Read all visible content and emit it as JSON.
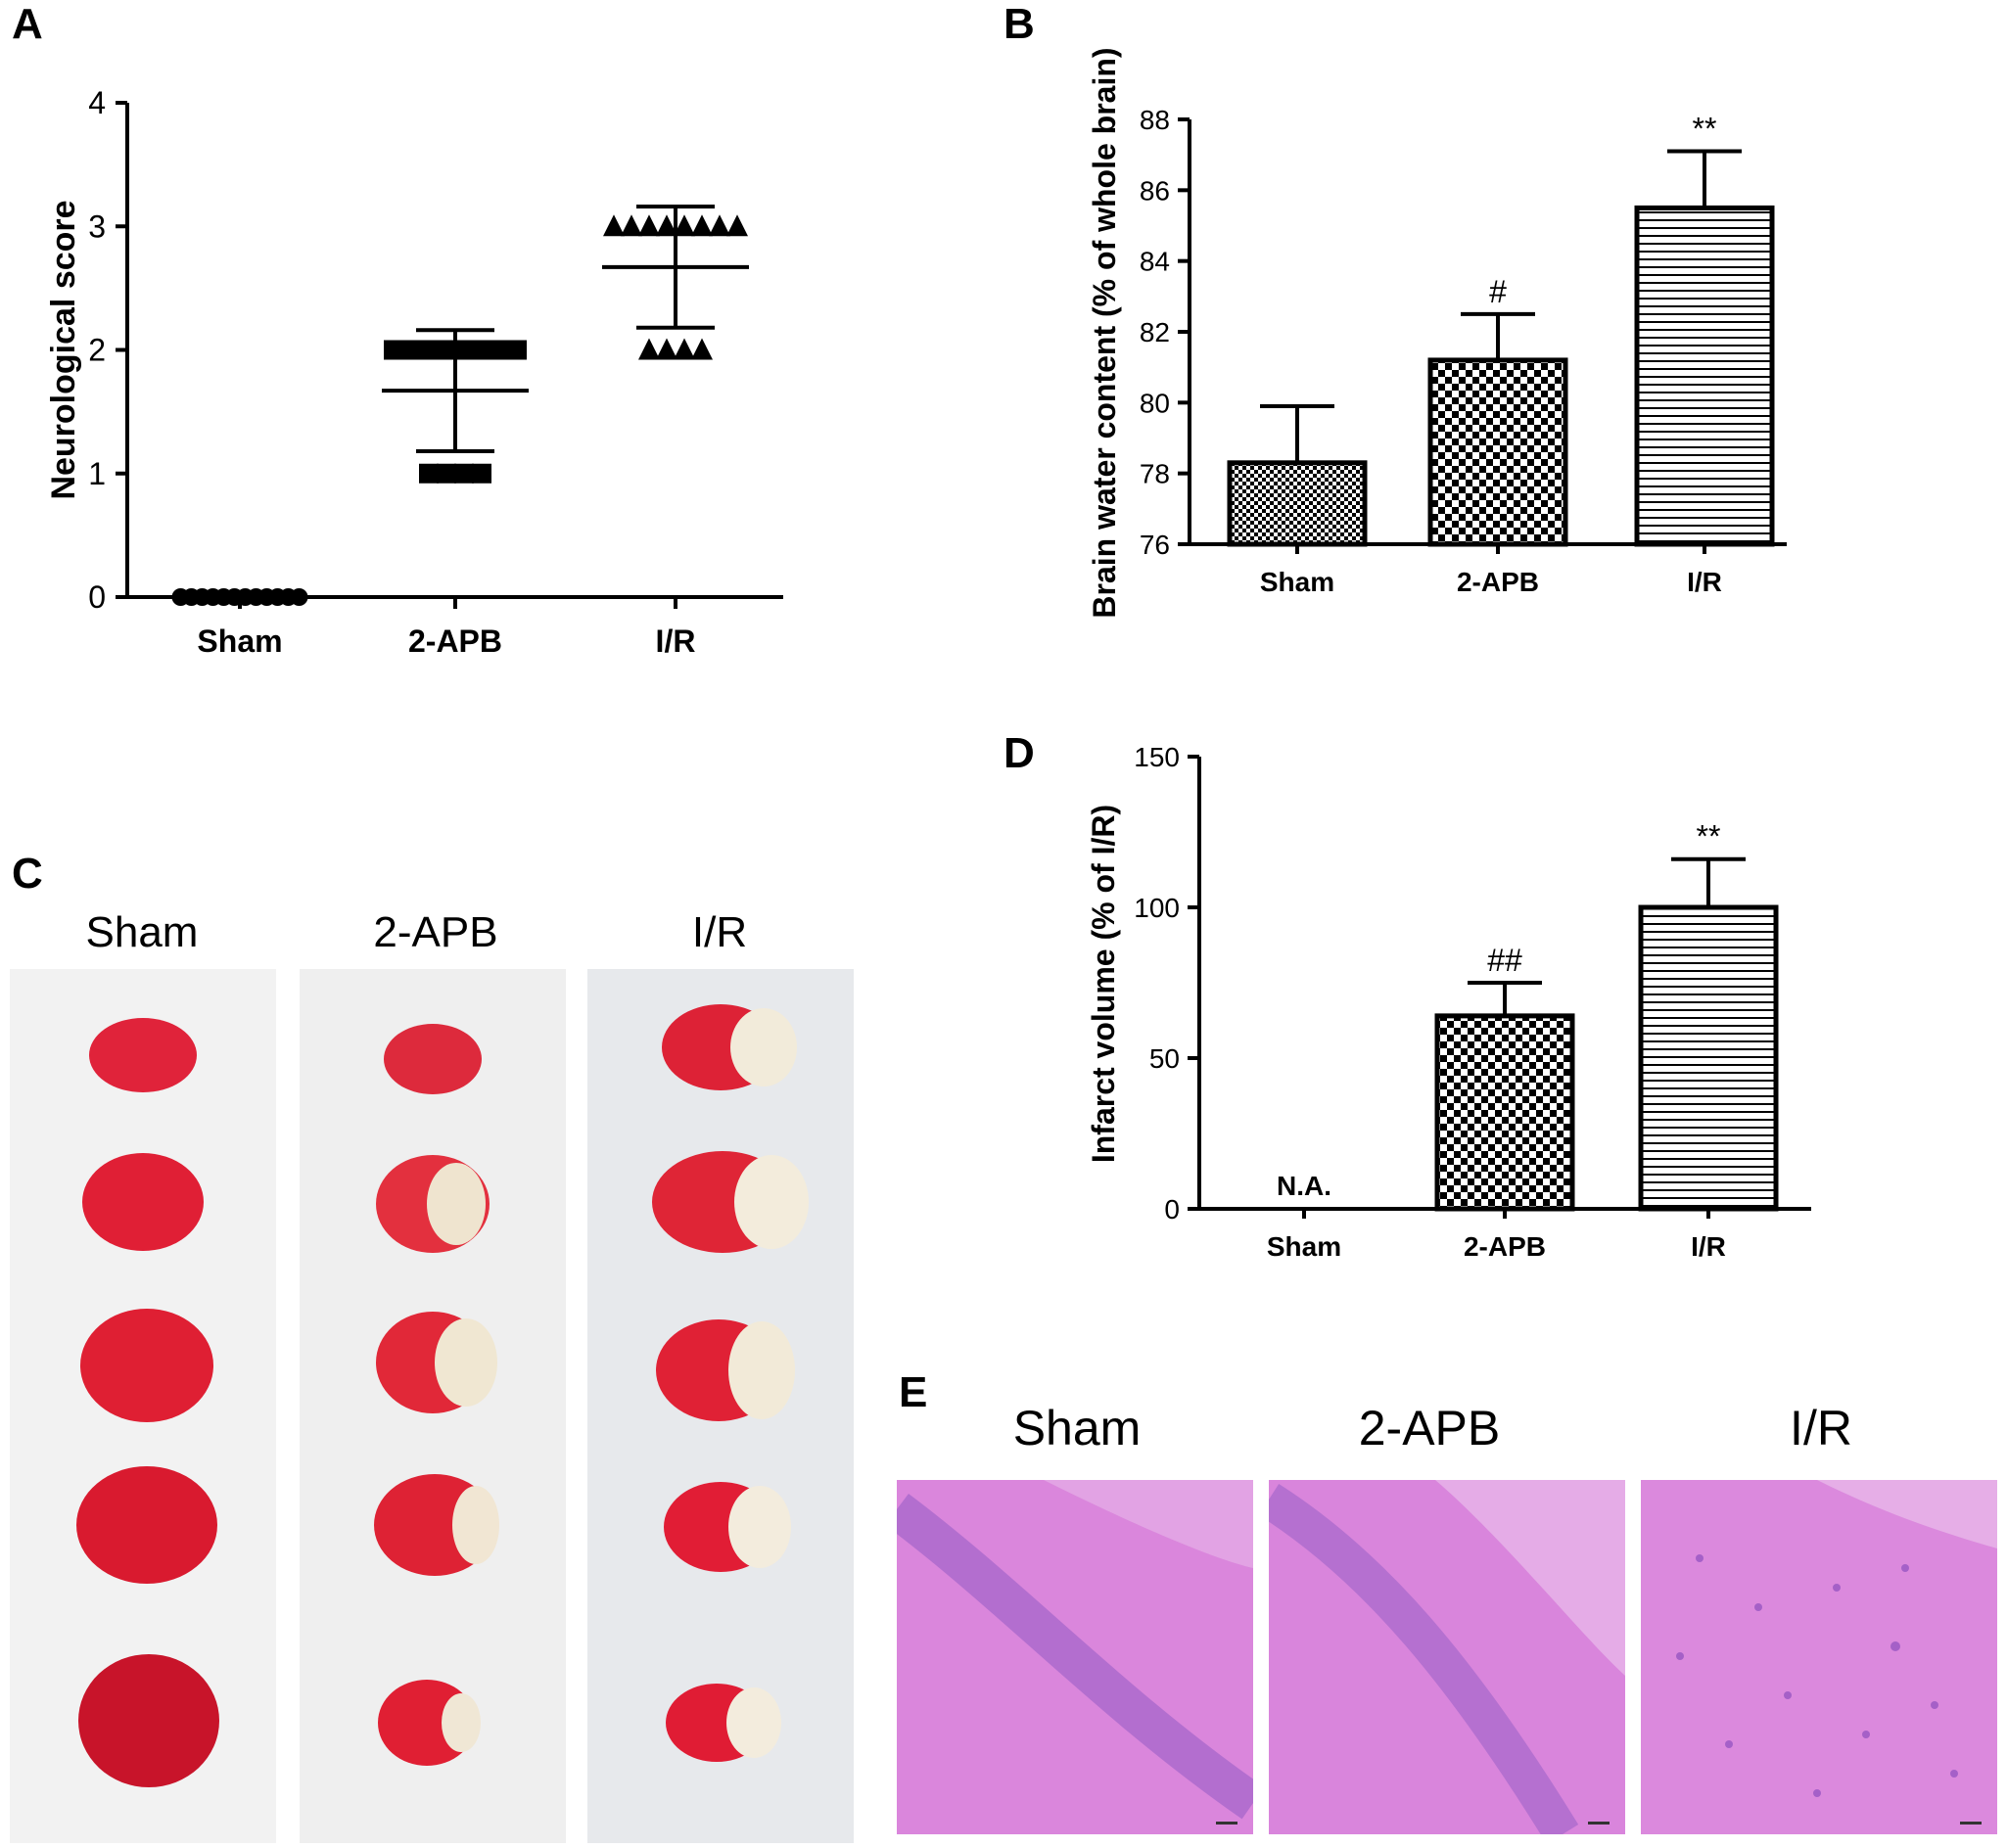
{
  "panels": {
    "A": {
      "letter": "A"
    },
    "B": {
      "letter": "B"
    },
    "C": {
      "letter": "C"
    },
    "D": {
      "letter": "D"
    },
    "E": {
      "letter": "E"
    }
  },
  "photo_groups": [
    "Sham",
    "2-APB",
    "I/R"
  ],
  "he_groups": [
    "Sham",
    "2-APB",
    "I/R"
  ],
  "chart_data": [
    {
      "id": "A",
      "type": "scatter",
      "ylabel": "Neurological score",
      "xlabel": "",
      "categories": [
        "Sham",
        "2-APB",
        "I/R"
      ],
      "ylim": [
        0,
        4
      ],
      "yticks": [
        0,
        1,
        2,
        3,
        4
      ],
      "series": [
        {
          "category": "Sham",
          "marker": "circle",
          "points": [
            0,
            0,
            0,
            0,
            0,
            0,
            0,
            0,
            0,
            0,
            0,
            0
          ],
          "mean": 0,
          "sd": 0
        },
        {
          "category": "2-APB",
          "marker": "square",
          "points": [
            2,
            2,
            2,
            2,
            2,
            2,
            2,
            2,
            1,
            1,
            1,
            1
          ],
          "mean": 1.67,
          "sd": 0.49
        },
        {
          "category": "I/R",
          "marker": "triangle",
          "points": [
            3,
            3,
            3,
            3,
            3,
            3,
            3,
            3,
            2,
            2,
            2,
            2
          ],
          "mean": 2.67,
          "sd": 0.49
        }
      ],
      "grid": false
    },
    {
      "id": "B",
      "type": "bar",
      "ylabel": "Brain water content (% of whole brain)",
      "xlabel": "",
      "categories": [
        "Sham",
        "2-APB",
        "I/R"
      ],
      "values": [
        78.3,
        81.2,
        85.5
      ],
      "errors": [
        1.6,
        1.3,
        1.6
      ],
      "patterns": [
        "fine-check",
        "check",
        "hlines"
      ],
      "annotations": [
        "",
        "#",
        "**"
      ],
      "ylim": [
        76,
        88
      ],
      "yticks": [
        76,
        78,
        80,
        82,
        84,
        86,
        88
      ],
      "grid": false
    },
    {
      "id": "D",
      "type": "bar",
      "ylabel": "Infarct volume (% of I/R)",
      "xlabel": "",
      "categories": [
        "Sham",
        "2-APB",
        "I/R"
      ],
      "values": [
        0,
        64,
        100
      ],
      "errors": [
        0,
        11,
        16
      ],
      "patterns": [
        "none",
        "check",
        "hlines"
      ],
      "annotations": [
        "N.A.",
        "##",
        "**"
      ],
      "ylim": [
        0,
        150
      ],
      "yticks": [
        0,
        50,
        100,
        150
      ],
      "grid": false
    }
  ]
}
